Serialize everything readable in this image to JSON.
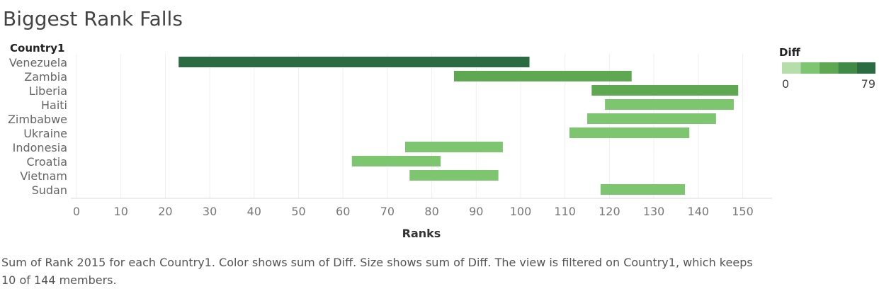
{
  "chart_data": {
    "type": "bar",
    "subtype": "gantt",
    "title": "Biggest Rank Falls",
    "row_header": "Country1",
    "xlabel": "Ranks",
    "xlim": [
      0,
      155
    ],
    "xticks": [
      0,
      10,
      20,
      30,
      40,
      50,
      60,
      70,
      80,
      90,
      100,
      110,
      120,
      130,
      140,
      150
    ],
    "grid": "vertical",
    "categories": [
      "Venezuela",
      "Zambia",
      "Liberia",
      "Haiti",
      "Zimbabwe",
      "Ukraine",
      "Indonesia",
      "Croatia",
      "Vietnam",
      "Sudan"
    ],
    "series": [
      {
        "name": "Diff",
        "start": [
          23,
          85,
          116,
          119,
          115,
          111,
          74,
          62,
          75,
          118
        ],
        "end": [
          102,
          125,
          149,
          148,
          144,
          138,
          96,
          82,
          95,
          137
        ]
      }
    ],
    "legend": {
      "title": "Diff",
      "min_label": "0",
      "max_label": "79",
      "placement": "top-right",
      "colors": [
        "#b5deaa",
        "#7dc56e",
        "#5fa852",
        "#3f8a45",
        "#2b6b41"
      ]
    },
    "bar_colors": [
      "#2b6b41",
      "#5fa852",
      "#5fa852",
      "#7dc56e",
      "#7dc56e",
      "#7dc56e",
      "#7dc56e",
      "#7dc56e",
      "#7dc56e",
      "#7dc56e"
    ]
  },
  "caption": "Sum of Rank 2015 for each Country1.  Color shows sum of Diff.  Size shows sum of Diff. The view is filtered on Country1, which keeps 10 of 144 members."
}
